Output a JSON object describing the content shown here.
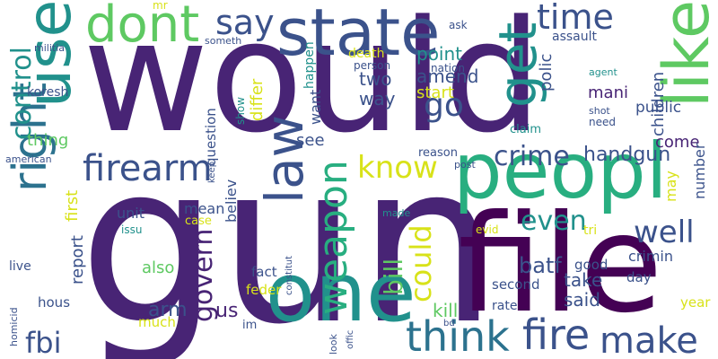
{
  "palette": {
    "purple_dark": "#440154",
    "indigo": "#482475",
    "slate_blue": "#3b528b",
    "blue": "#2c728e",
    "teal": "#21918c",
    "sea_green": "#28ae80",
    "green": "#5ec962",
    "lime": "#addc30",
    "yellow": "#d8e219",
    "bright_yellow": "#fde725"
  },
  "words": [
    {
      "text": "would",
      "color": "#482475",
      "rot": 0
    },
    {
      "text": "gun",
      "color": "#482475",
      "rot": 0
    },
    {
      "text": "file",
      "color": "#440154",
      "rot": 0
    },
    {
      "text": "peopl",
      "color": "#28ae80",
      "rot": 0
    },
    {
      "text": "state",
      "color": "#3b528b",
      "rot": 0
    },
    {
      "text": "one",
      "color": "#21918c",
      "rot": 0
    },
    {
      "text": "use",
      "color": "#21918c",
      "rot": -90
    },
    {
      "text": "dont",
      "color": "#5ec962",
      "rot": 0
    },
    {
      "text": "like",
      "color": "#5ec962",
      "rot": -90
    },
    {
      "text": "get",
      "color": "#21918c",
      "rot": -90
    },
    {
      "text": "right",
      "color": "#2c728e",
      "rot": -90
    },
    {
      "text": "law",
      "color": "#3b528b",
      "rot": -90
    },
    {
      "text": "firearm",
      "color": "#3b528b",
      "rot": 0
    },
    {
      "text": "fire",
      "color": "#3b528b",
      "rot": 0
    },
    {
      "text": "think",
      "color": "#2c728e",
      "rot": 0
    },
    {
      "text": "make",
      "color": "#3b528b",
      "rot": 0
    },
    {
      "text": "weapon",
      "color": "#28ae80",
      "rot": -90
    },
    {
      "text": "know",
      "color": "#d8e219",
      "rot": 0
    },
    {
      "text": "say",
      "color": "#3b528b",
      "rot": 0
    },
    {
      "text": "time",
      "color": "#3b528b",
      "rot": 0
    },
    {
      "text": "control",
      "color": "#21918c",
      "rot": -90
    },
    {
      "text": "could",
      "color": "#d8e219",
      "rot": -90
    },
    {
      "text": "govern",
      "color": "#482475",
      "rot": -90
    },
    {
      "text": "go",
      "color": "#3b528b",
      "rot": 0
    },
    {
      "text": "crime",
      "color": "#3b528b",
      "rot": 0
    },
    {
      "text": "well",
      "color": "#3b528b",
      "rot": 0
    },
    {
      "text": "even",
      "color": "#21918c",
      "rot": 0
    },
    {
      "text": "fbi",
      "color": "#3b528b",
      "rot": 0
    },
    {
      "text": "bill",
      "color": "#5ec962",
      "rot": -90
    },
    {
      "text": "point",
      "color": "#21918c",
      "rot": 0
    },
    {
      "text": "amend",
      "color": "#3b528b",
      "rot": 0
    },
    {
      "text": "start",
      "color": "#d8e219",
      "rot": 0
    },
    {
      "text": "two",
      "color": "#3b528b",
      "rot": 0
    },
    {
      "text": "way",
      "color": "#3b528b",
      "rot": 0
    },
    {
      "text": "mani",
      "color": "#482475",
      "rot": 0
    },
    {
      "text": "handgun",
      "color": "#3b528b",
      "rot": 0
    },
    {
      "text": "come",
      "color": "#482475",
      "rot": 0
    },
    {
      "text": "batf",
      "color": "#3b528b",
      "rot": 0
    },
    {
      "text": "take",
      "color": "#3b528b",
      "rot": 0
    },
    {
      "text": "said",
      "color": "#3b528b",
      "rot": 0
    },
    {
      "text": "arm",
      "color": "#3b528b",
      "rot": 0
    },
    {
      "text": "also",
      "color": "#5ec962",
      "rot": 0
    },
    {
      "text": "us",
      "color": "#482475",
      "rot": 0
    },
    {
      "text": "kill",
      "color": "#5ec962",
      "rot": 0
    },
    {
      "text": "thing",
      "color": "#5ec962",
      "rot": 0
    },
    {
      "text": "see",
      "color": "#3b528b",
      "rot": 0
    },
    {
      "text": "koresh",
      "color": "#3b528b",
      "rot": 0
    },
    {
      "text": "want",
      "color": "#3b528b",
      "rot": -90
    },
    {
      "text": "differ",
      "color": "#d8e219",
      "rot": -90
    },
    {
      "text": "believ",
      "color": "#3b528b",
      "rot": -90
    },
    {
      "text": "children",
      "color": "#3b528b",
      "rot": -90
    },
    {
      "text": "polic",
      "color": "#3b528b",
      "rot": -90
    },
    {
      "text": "public",
      "color": "#3b528b",
      "rot": 0
    },
    {
      "text": "crimin",
      "color": "#3b528b",
      "rot": 0
    },
    {
      "text": "first",
      "color": "#d8e219",
      "rot": -90
    },
    {
      "text": "report",
      "color": "#3b528b",
      "rot": -90
    },
    {
      "text": "unit",
      "color": "#3b528b",
      "rot": 0
    },
    {
      "text": "mean",
      "color": "#3b528b",
      "rot": 0
    },
    {
      "text": "fact",
      "color": "#3b528b",
      "rot": 0
    },
    {
      "text": "feder",
      "color": "#d8e219",
      "rot": 0
    },
    {
      "text": "good",
      "color": "#3b528b",
      "rot": 0
    },
    {
      "text": "second",
      "color": "#3b528b",
      "rot": 0
    },
    {
      "text": "rate",
      "color": "#3b528b",
      "rot": 0
    },
    {
      "text": "year",
      "color": "#d8e219",
      "rot": 0
    },
    {
      "text": "day",
      "color": "#3b528b",
      "rot": 0
    },
    {
      "text": "much",
      "color": "#d8e219",
      "rot": 0
    },
    {
      "text": "hous",
      "color": "#3b528b",
      "rot": 0
    },
    {
      "text": "live",
      "color": "#3b528b",
      "rot": 0
    },
    {
      "text": "tri",
      "color": "#d8e219",
      "rot": 0
    },
    {
      "text": "may",
      "color": "#d8e219",
      "rot": -90
    },
    {
      "text": "number",
      "color": "#3b528b",
      "rot": -90
    },
    {
      "text": "question",
      "color": "#3b528b",
      "rot": -90
    },
    {
      "text": "happen",
      "color": "#21918c",
      "rot": -90
    },
    {
      "text": "death",
      "color": "#d8e219",
      "rot": 0
    },
    {
      "text": "person",
      "color": "#3b528b",
      "rot": 0
    },
    {
      "text": "nation",
      "color": "#3b528b",
      "rot": 0
    },
    {
      "text": "assault",
      "color": "#3b528b",
      "rot": 0
    },
    {
      "text": "someth",
      "color": "#3b528b",
      "rot": 0
    },
    {
      "text": "militia",
      "color": "#3b528b",
      "rot": 0
    },
    {
      "text": "mr",
      "color": "#d8e219",
      "rot": 0
    },
    {
      "text": "ask",
      "color": "#3b528b",
      "rot": 0
    },
    {
      "text": "agent",
      "color": "#21918c",
      "rot": 0
    },
    {
      "text": "shot",
      "color": "#3b528b",
      "rot": 0
    },
    {
      "text": "need",
      "color": "#3b528b",
      "rot": 0
    },
    {
      "text": "claim",
      "color": "#21918c",
      "rot": 0
    },
    {
      "text": "reason",
      "color": "#3b528b",
      "rot": 0
    },
    {
      "text": "post",
      "color": "#3b528b",
      "rot": 0
    },
    {
      "text": "american",
      "color": "#3b528b",
      "rot": 0
    },
    {
      "text": "case",
      "color": "#d8e219",
      "rot": 0
    },
    {
      "text": "issu",
      "color": "#21918c",
      "rot": 0
    },
    {
      "text": "made",
      "color": "#21918c",
      "rot": 0
    },
    {
      "text": "evid",
      "color": "#d8e219",
      "rot": 0
    },
    {
      "text": "constitut",
      "color": "#3b528b",
      "rot": -90
    },
    {
      "text": "homicid",
      "color": "#3b528b",
      "rot": -90
    },
    {
      "text": "offic",
      "color": "#3b528b",
      "rot": -90
    },
    {
      "text": "look",
      "color": "#3b528b",
      "rot": -90
    },
    {
      "text": "bd",
      "color": "#3b528b",
      "rot": 0
    },
    {
      "text": "im",
      "color": "#3b528b",
      "rot": 0
    },
    {
      "text": "keep",
      "color": "#3b528b",
      "rot": -90
    },
    {
      "text": "show",
      "color": "#21918c",
      "rot": -90
    }
  ]
}
